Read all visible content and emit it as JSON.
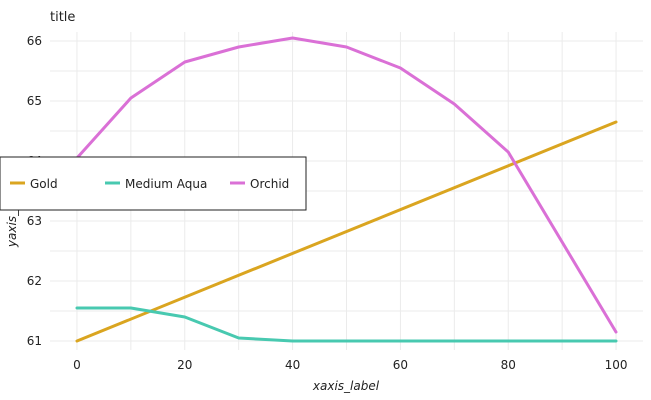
{
  "chart_data": {
    "type": "line",
    "title": "title",
    "xlabel": "xaxis_label",
    "ylabel": "yaxis_label",
    "xlim": [
      -5,
      105
    ],
    "ylim": [
      60.85,
      66.15
    ],
    "x_ticks": [
      0,
      20,
      40,
      60,
      80,
      100
    ],
    "y_ticks": [
      61,
      62,
      63,
      64,
      65,
      66
    ],
    "grid": true,
    "legend_position": "left",
    "series": [
      {
        "name": "Gold",
        "color": "#DAA520",
        "x": [
          0,
          100
        ],
        "y": [
          61.0,
          64.65
        ]
      },
      {
        "name": "Medium Aqua",
        "color": "#48C9B0",
        "x": [
          0,
          10,
          20,
          30,
          40,
          60,
          80,
          100
        ],
        "y": [
          61.55,
          61.55,
          61.4,
          61.05,
          61.0,
          61.0,
          61.0,
          61.0
        ]
      },
      {
        "name": "Orchid",
        "color": "#DA70D6",
        "x": [
          0,
          10,
          20,
          30,
          40,
          50,
          60,
          70,
          80,
          100
        ],
        "y": [
          64.05,
          65.05,
          65.65,
          65.9,
          66.05,
          65.9,
          65.55,
          64.95,
          64.15,
          61.15
        ]
      }
    ]
  }
}
